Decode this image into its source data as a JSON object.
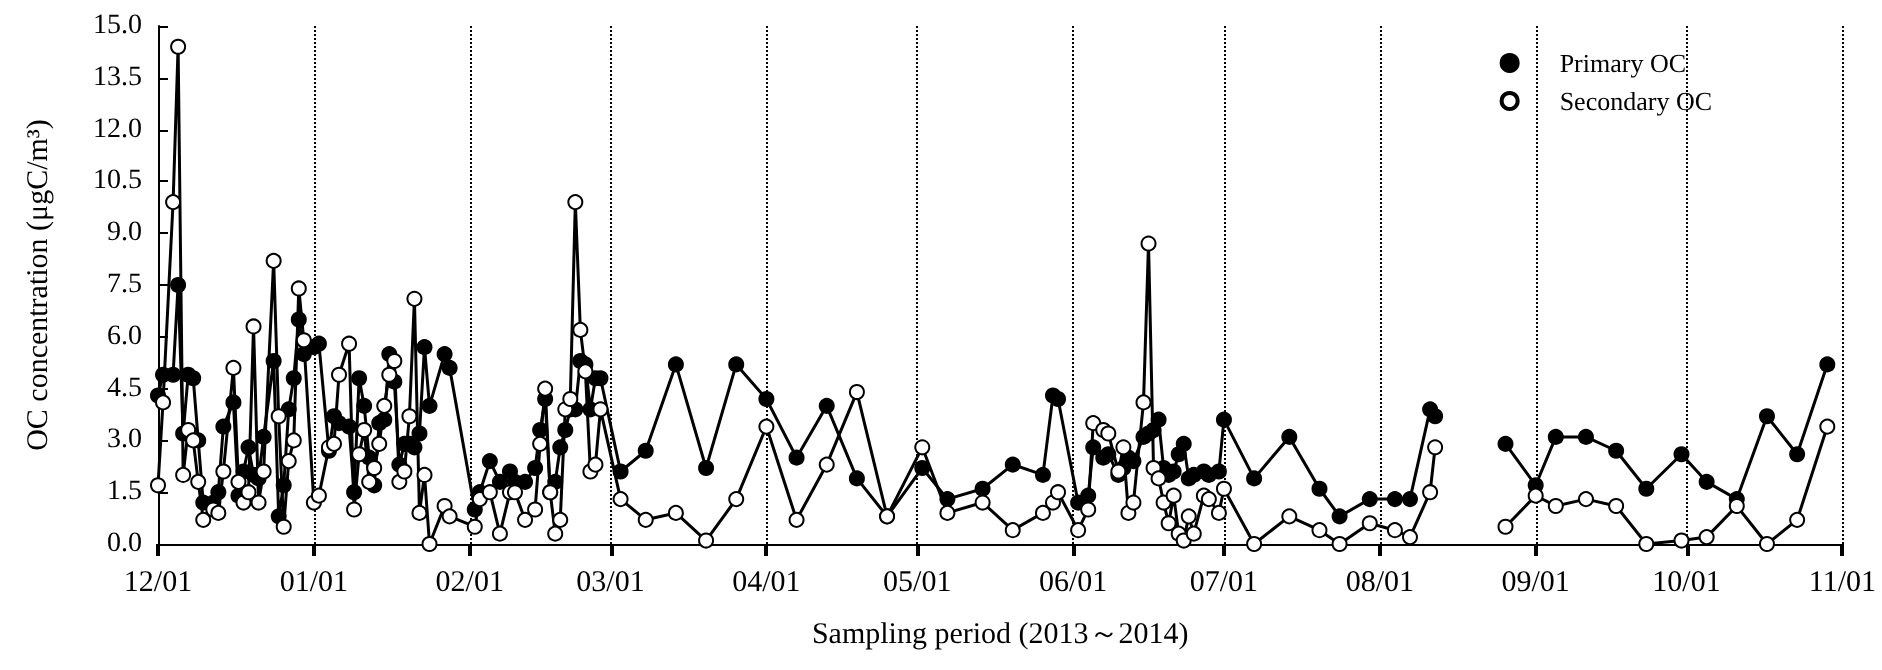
{
  "chart_data": {
    "type": "line",
    "xlabel": "Sampling period (2013～2014)",
    "ylabel": "OC concentration (μgC/m³)",
    "x": [
      "2013-12-01",
      "2013-12-02",
      "2013-12-04",
      "2013-12-05",
      "2013-12-06",
      "2013-12-07",
      "2013-12-08",
      "2013-12-09",
      "2013-12-10",
      "2013-12-12",
      "2013-12-13",
      "2013-12-14",
      "2013-12-16",
      "2013-12-17",
      "2013-12-18",
      "2013-12-19",
      "2013-12-20",
      "2013-12-21",
      "2013-12-22",
      "2013-12-24",
      "2013-12-25",
      "2013-12-26",
      "2013-12-27",
      "2013-12-28",
      "2013-12-29",
      "2013-12-30",
      "2014-01-01",
      "2014-01-02",
      "2014-01-04",
      "2014-01-05",
      "2014-01-06",
      "2014-01-08",
      "2014-01-09",
      "2014-01-10",
      "2014-01-11",
      "2014-01-12",
      "2014-01-13",
      "2014-01-14",
      "2014-01-15",
      "2014-01-16",
      "2014-01-17",
      "2014-01-18",
      "2014-01-19",
      "2014-01-20",
      "2014-01-21",
      "2014-01-22",
      "2014-01-23",
      "2014-01-24",
      "2014-01-27",
      "2014-01-28",
      "2014-02-02",
      "2014-02-03",
      "2014-02-05",
      "2014-02-07",
      "2014-02-09",
      "2014-02-10",
      "2014-02-12",
      "2014-02-14",
      "2014-02-15",
      "2014-02-16",
      "2014-02-17",
      "2014-02-18",
      "2014-02-19",
      "2014-02-20",
      "2014-02-21",
      "2014-02-22",
      "2014-02-23",
      "2014-02-24",
      "2014-02-25",
      "2014-02-26",
      "2014-02-27",
      "2014-03-03",
      "2014-03-08",
      "2014-03-14",
      "2014-03-20",
      "2014-03-26",
      "2014-04-01",
      "2014-04-07",
      "2014-04-13",
      "2014-04-19",
      "2014-04-25",
      "2014-05-02",
      "2014-05-07",
      "2014-05-14",
      "2014-05-20",
      "2014-05-26",
      "2014-05-28",
      "2014-05-29",
      "2014-06-02",
      "2014-06-04",
      "2014-06-05",
      "2014-06-07",
      "2014-06-08",
      "2014-06-10",
      "2014-06-11",
      "2014-06-12",
      "2014-06-13",
      "2014-06-15",
      "2014-06-16",
      "2014-06-17",
      "2014-06-18",
      "2014-06-19",
      "2014-06-20",
      "2014-06-21",
      "2014-06-22",
      "2014-06-23",
      "2014-06-24",
      "2014-06-25",
      "2014-06-27",
      "2014-06-28",
      "2014-06-30",
      "2014-07-01",
      "2014-07-07",
      "2014-07-14",
      "2014-07-20",
      "2014-07-24",
      "2014-07-30",
      "2014-08-04",
      "2014-08-07",
      "2014-08-11",
      "2014-08-12",
      "2014-08-19",
      "2014-08-26",
      "2014-09-01",
      "2014-09-05",
      "2014-09-11",
      "2014-09-17",
      "2014-09-23",
      "2014-09-30",
      "2014-10-05",
      "2014-10-11",
      "2014-10-17",
      "2014-10-23",
      "2014-10-29"
    ],
    "series": [
      {
        "name": "Primary OC",
        "color": "#000000",
        "values": [
          4.3,
          4.9,
          4.9,
          7.5,
          3.2,
          4.9,
          4.8,
          3.0,
          1.2,
          1.2,
          1.5,
          3.4,
          4.1,
          1.4,
          2.1,
          2.8,
          2.0,
          1.9,
          3.1,
          5.3,
          0.8,
          1.7,
          3.9,
          4.8,
          6.5,
          5.5,
          5.7,
          5.8,
          2.7,
          3.7,
          3.5,
          3.4,
          1.5,
          4.8,
          4.0,
          2.5,
          1.7,
          3.5,
          3.6,
          5.5,
          4.7,
          2.3,
          2.9,
          2.9,
          2.8,
          3.2,
          5.7,
          4.0,
          5.5,
          5.1,
          1.0,
          1.5,
          2.4,
          1.8,
          2.1,
          1.8,
          1.8,
          2.2,
          3.3,
          4.2,
          1.5,
          1.8,
          2.8,
          3.3,
          3.9,
          3.9,
          5.3,
          5.2,
          3.9,
          4.8,
          4.8,
          2.1,
          2.7,
          5.2,
          2.2,
          5.2,
          4.2,
          2.5,
          4.0,
          1.9,
          0.8,
          2.2,
          1.3,
          1.6,
          2.3,
          2.0,
          4.3,
          4.2,
          1.2,
          1.4,
          2.8,
          2.5,
          2.6,
          2.0,
          2.2,
          2.5,
          2.4,
          3.1,
          3.2,
          3.3,
          3.6,
          2.2,
          2.0,
          2.1,
          2.6,
          2.9,
          1.9,
          2.0,
          2.1,
          2.0,
          2.1,
          3.6,
          1.9,
          3.1,
          1.6,
          0.8,
          1.3,
          1.3,
          1.3,
          3.9,
          3.7,
          null,
          2.9,
          1.7,
          3.1,
          3.1,
          2.7,
          1.6,
          2.6,
          1.8,
          1.3,
          3.7,
          2.6,
          5.2
        ]
      },
      {
        "name": "Secondary OC",
        "color": "#ffffff",
        "values": [
          1.7,
          4.1,
          9.9,
          14.4,
          2.0,
          3.3,
          3.0,
          1.8,
          0.7,
          1.0,
          0.9,
          2.1,
          5.1,
          1.8,
          1.2,
          1.5,
          6.3,
          1.2,
          2.1,
          8.2,
          3.7,
          0.5,
          2.4,
          3.0,
          7.4,
          5.9,
          1.2,
          1.4,
          2.8,
          2.9,
          4.9,
          5.8,
          1.0,
          2.6,
          3.3,
          1.8,
          2.2,
          2.9,
          4.0,
          4.9,
          5.3,
          1.8,
          2.1,
          3.7,
          7.1,
          0.9,
          2.0,
          0.0,
          1.1,
          0.8,
          0.5,
          1.3,
          1.5,
          0.3,
          1.5,
          1.5,
          0.7,
          1.0,
          2.9,
          4.5,
          1.5,
          0.3,
          0.7,
          3.9,
          4.2,
          9.9,
          6.2,
          5.0,
          2.1,
          2.3,
          3.9,
          1.3,
          0.7,
          0.9,
          0.1,
          1.3,
          3.4,
          0.7,
          2.3,
          4.4,
          0.8,
          2.8,
          0.9,
          1.2,
          0.4,
          0.9,
          1.2,
          1.5,
          0.4,
          1.0,
          3.5,
          3.3,
          3.2,
          2.1,
          2.8,
          0.9,
          1.2,
          4.1,
          8.7,
          2.2,
          1.9,
          1.2,
          0.6,
          1.4,
          0.3,
          0.1,
          0.8,
          0.3,
          1.4,
          1.3,
          0.9,
          1.6,
          0.0,
          0.8,
          0.4,
          0.0,
          0.6,
          0.4,
          0.2,
          1.5,
          2.8,
          null,
          0.5,
          1.4,
          1.1,
          1.3,
          1.1,
          0.0,
          0.1,
          0.2,
          1.1,
          0.0,
          0.7,
          3.4
        ]
      }
    ],
    "xlim": [
      "2013-12-01",
      "2014-11-01"
    ],
    "xticks": [
      {
        "value": "2013-12-01",
        "label": "12/01"
      },
      {
        "value": "2014-01-01",
        "label": "01/01"
      },
      {
        "value": "2014-02-01",
        "label": "02/01"
      },
      {
        "value": "2014-03-01",
        "label": "03/01"
      },
      {
        "value": "2014-04-01",
        "label": "04/01"
      },
      {
        "value": "2014-05-01",
        "label": "05/01"
      },
      {
        "value": "2014-06-01",
        "label": "06/01"
      },
      {
        "value": "2014-07-01",
        "label": "07/01"
      },
      {
        "value": "2014-08-01",
        "label": "08/01"
      },
      {
        "value": "2014-09-01",
        "label": "09/01"
      },
      {
        "value": "2014-10-01",
        "label": "10/01"
      },
      {
        "value": "2014-11-01",
        "label": "11/01"
      }
    ],
    "ylim": [
      0,
      15
    ],
    "yticks": [
      {
        "value": 0,
        "label": "0.0"
      },
      {
        "value": 1.5,
        "label": "1.5"
      },
      {
        "value": 3,
        "label": "3.0"
      },
      {
        "value": 4.5,
        "label": "4.5"
      },
      {
        "value": 6,
        "label": "6.0"
      },
      {
        "value": 7.5,
        "label": "7.5"
      },
      {
        "value": 9,
        "label": "9.0"
      },
      {
        "value": 10.5,
        "label": "10.5"
      },
      {
        "value": 12,
        "label": "12.0"
      },
      {
        "value": 13.5,
        "label": "13.5"
      },
      {
        "value": 15,
        "label": "15.0"
      }
    ],
    "grid": "x",
    "legend": "top right",
    "marker": "circle",
    "line_style": "solid"
  }
}
